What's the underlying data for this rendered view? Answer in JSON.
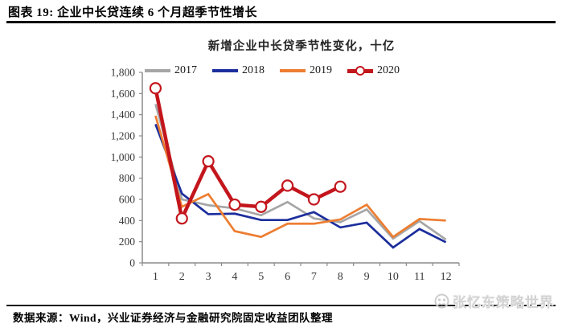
{
  "header": {
    "title": "图表 19: 企业中长贷连续 6 个月超季节性增长"
  },
  "chart_data": {
    "type": "line",
    "title": "新增企业中长贷季节性变化，十亿",
    "x": [
      1,
      2,
      3,
      4,
      5,
      6,
      7,
      8,
      9,
      10,
      11,
      12
    ],
    "series": [
      {
        "name": "2017",
        "color": "#a6a6a6",
        "values": [
          1500,
          600,
          545,
          515,
          450,
          575,
          420,
          385,
          505,
          230,
          395,
          220
        ]
      },
      {
        "name": "2018",
        "color": "#1c2e9c",
        "values": [
          1310,
          655,
          460,
          465,
          405,
          405,
          480,
          335,
          380,
          145,
          320,
          195
        ]
      },
      {
        "name": "2019",
        "color": "#ed7d31",
        "values": [
          1390,
          530,
          650,
          300,
          245,
          370,
          370,
          410,
          550,
          245,
          415,
          400
        ]
      },
      {
        "name": "2020",
        "color": "#c3161c",
        "marker": "circle",
        "values": [
          1650,
          420,
          960,
          550,
          530,
          730,
          600,
          720
        ]
      }
    ],
    "ylim": [
      0,
      1800
    ],
    "ytick_step": 200,
    "ytick_labels": [
      "0",
      "200",
      "400",
      "600",
      "800",
      "1,000",
      "1,200",
      "1,400",
      "1,600",
      "1,800"
    ],
    "grid": false,
    "legend_position": "top",
    "axis_color": "#8c8c8c",
    "tick_label_color": "#383838"
  },
  "footer": {
    "source": "数据来源：Wind，兴业证券经济与金融研究院固定收益团队整理"
  },
  "watermark": {
    "text": "张忆东策略世界"
  }
}
